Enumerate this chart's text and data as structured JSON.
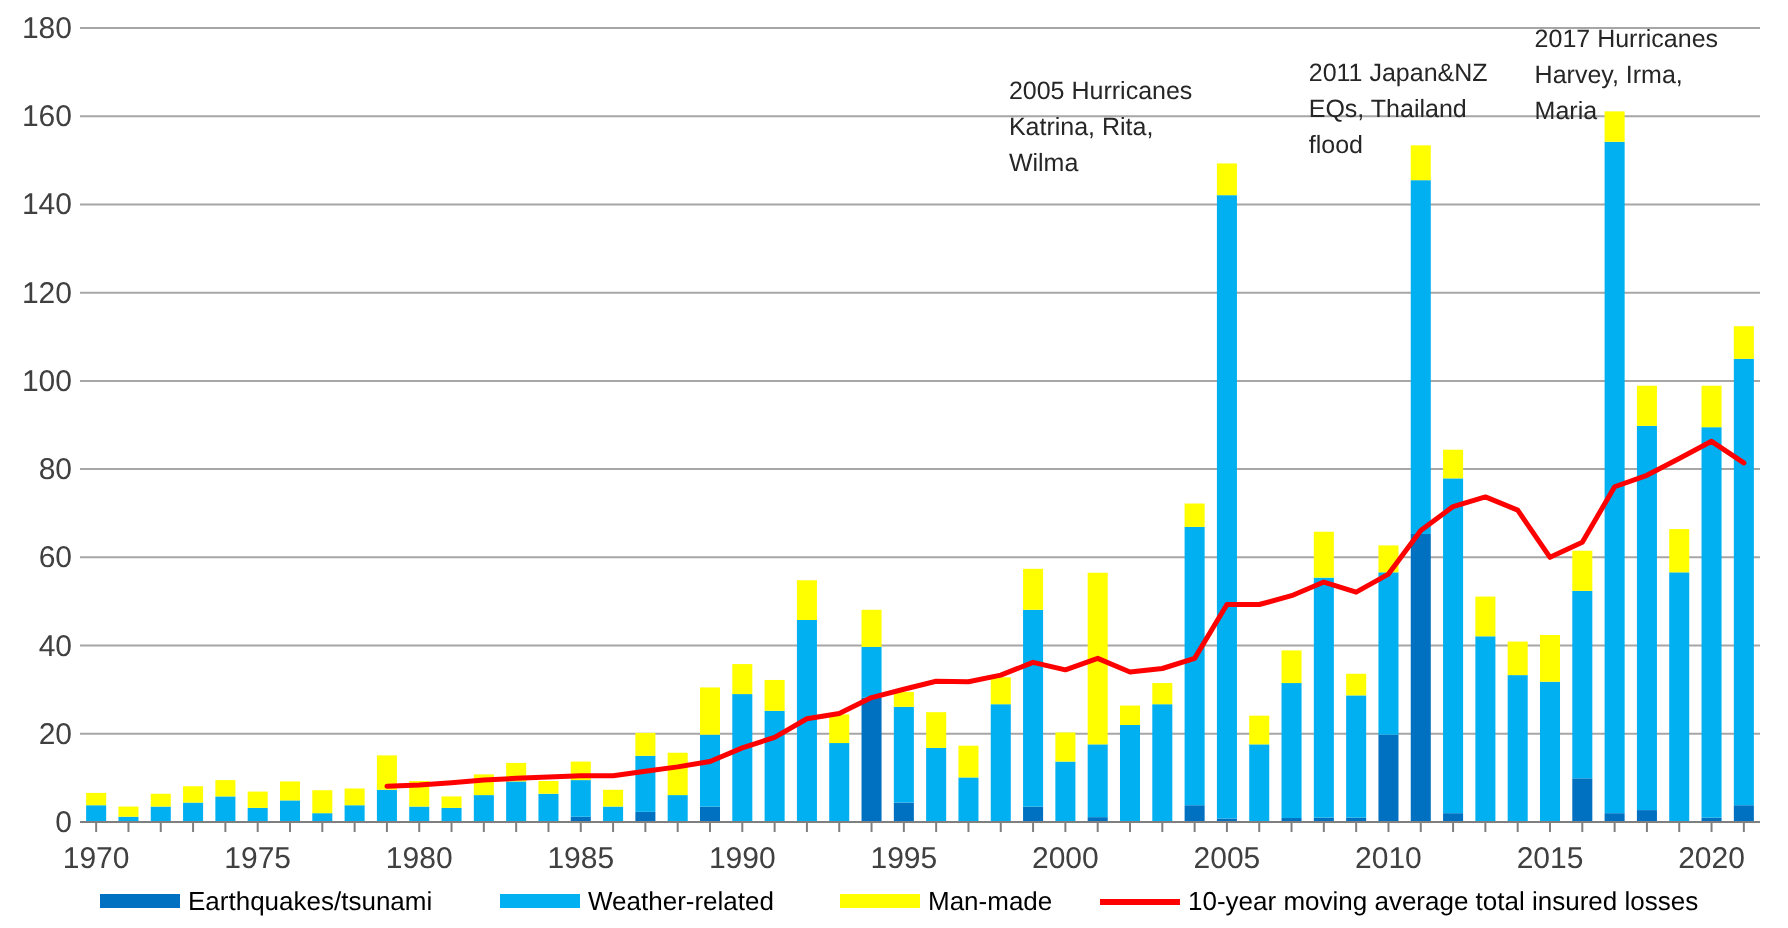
{
  "chart_data": {
    "type": "bar",
    "stacked": true,
    "x": [
      1970,
      1971,
      1972,
      1973,
      1974,
      1975,
      1976,
      1977,
      1978,
      1979,
      1980,
      1981,
      1982,
      1983,
      1984,
      1985,
      1986,
      1987,
      1988,
      1989,
      1990,
      1991,
      1992,
      1993,
      1994,
      1995,
      1996,
      1997,
      1998,
      1999,
      2000,
      2001,
      2002,
      2003,
      2004,
      2005,
      2006,
      2007,
      2008,
      2009,
      2010,
      2011,
      2012,
      2013,
      2014,
      2015,
      2016,
      2017,
      2018,
      2019,
      2020,
      2021
    ],
    "series": [
      {
        "name": "Earthquakes/tsunami",
        "color": "#0070c0",
        "values": [
          0,
          0,
          0,
          0,
          0,
          0,
          0,
          0,
          0,
          0,
          0,
          0,
          0,
          0,
          0,
          1.2,
          0,
          2.3,
          0,
          3.5,
          0,
          0,
          0,
          0,
          28.2,
          4.4,
          0,
          0,
          0,
          3.5,
          0,
          1.1,
          0,
          0,
          3.8,
          0.8,
          0,
          0.9,
          1,
          1,
          19.8,
          65.3,
          2,
          0,
          0,
          0,
          9.9,
          2,
          2.7,
          0,
          1,
          3.8
        ]
      },
      {
        "name": "Weather-related",
        "color": "#00b0f0",
        "values": [
          3.8,
          1.2,
          3.5,
          4.4,
          5.8,
          3.2,
          4.9,
          2,
          3.8,
          7.3,
          3.5,
          3.2,
          6.1,
          9.2,
          6.4,
          8.3,
          3.5,
          12.7,
          6.1,
          16.3,
          29,
          25.2,
          45.8,
          17.9,
          11.5,
          21.7,
          16.8,
          10.1,
          26.7,
          44.6,
          13.7,
          16.5,
          22,
          26.7,
          63.1,
          141.3,
          17.6,
          30.6,
          54.4,
          27.7,
          36.8,
          80.2,
          75.9,
          42.1,
          33.3,
          31.8,
          42.5,
          152.2,
          87.1,
          56.6,
          88.5,
          101.2
        ]
      },
      {
        "name": "Man-made",
        "color": "#ffff00",
        "values": [
          2.8,
          2.3,
          2.9,
          3.7,
          3.7,
          3.7,
          4.3,
          5.2,
          3.8,
          7.8,
          5.8,
          2.6,
          4.7,
          4.2,
          2.9,
          4.2,
          3.8,
          5.2,
          9.6,
          10.7,
          6.8,
          7,
          9,
          6.5,
          8.4,
          3.4,
          8.1,
          7.2,
          6.1,
          9.3,
          6.6,
          38.9,
          4.4,
          4.8,
          5.3,
          7.2,
          6.5,
          7.4,
          10.4,
          4.9,
          6.1,
          7.9,
          6.5,
          9,
          7.6,
          10.6,
          9.1,
          6.9,
          9.1,
          9.8,
          9.4,
          7.4
        ]
      },
      {
        "name": "10-year moving average total insured losses",
        "type": "line",
        "color": "#ff0000",
        "values": [
          null,
          null,
          null,
          null,
          null,
          null,
          null,
          null,
          null,
          8.1,
          8.4,
          8.9,
          9.5,
          9.9,
          10.2,
          10.5,
          10.5,
          11.5,
          12.5,
          13.7,
          16.8,
          19.2,
          23.4,
          24.6,
          28.2,
          30.1,
          31.9,
          31.8,
          33.3,
          36.2,
          34.5,
          37.1,
          34,
          34.8,
          37.1,
          49.3,
          49.3,
          51.3,
          54.4,
          52.1,
          56.2,
          66.1,
          71.5,
          73.7,
          70.7,
          60,
          63.4,
          76,
          78.6,
          82.4,
          86.3,
          81.4
        ]
      }
    ],
    "xlim": [
      1969.5,
      2021.5
    ],
    "xticks": [
      1970,
      {
        "value": 1971,
        "label": null
      },
      {
        "value": 1972,
        "label": null
      },
      {
        "value": 1973,
        "label": null
      },
      {
        "value": 1974,
        "label": null
      },
      1975,
      {
        "value": 1976,
        "label": null
      },
      {
        "value": 1977,
        "label": null
      },
      {
        "value": 1978,
        "label": null
      },
      {
        "value": 1979,
        "label": null
      },
      1980,
      {
        "value": 1981,
        "label": null
      },
      {
        "value": 1982,
        "label": null
      },
      {
        "value": 1983,
        "label": null
      },
      {
        "value": 1984,
        "label": null
      },
      1985,
      {
        "value": 1986,
        "label": null
      },
      {
        "value": 1987,
        "label": null
      },
      {
        "value": 1988,
        "label": null
      },
      {
        "value": 1989,
        "label": null
      },
      1990,
      {
        "value": 1991,
        "label": null
      },
      {
        "value": 1992,
        "label": null
      },
      {
        "value": 1993,
        "label": null
      },
      {
        "value": 1994,
        "label": null
      },
      1995,
      {
        "value": 1996,
        "label": null
      },
      {
        "value": 1997,
        "label": null
      },
      {
        "value": 1998,
        "label": null
      },
      {
        "value": 1999,
        "label": null
      },
      2000,
      {
        "value": 2001,
        "label": null
      },
      {
        "value": 2002,
        "label": null
      },
      {
        "value": 2003,
        "label": null
      },
      {
        "value": 2004,
        "label": null
      },
      2005,
      {
        "value": 2006,
        "label": null
      },
      {
        "value": 2007,
        "label": null
      },
      {
        "value": 2008,
        "label": null
      },
      {
        "value": 2009,
        "label": null
      },
      2010,
      {
        "value": 2011,
        "label": null
      },
      {
        "value": 2012,
        "label": null
      },
      {
        "value": 2013,
        "label": null
      },
      {
        "value": 2014,
        "label": null
      },
      2015,
      {
        "value": 2016,
        "label": null
      },
      {
        "value": 2017,
        "label": null
      },
      {
        "value": 2018,
        "label": null
      },
      {
        "value": 2019,
        "label": null
      },
      2020,
      {
        "value": 2021,
        "label": null
      }
    ],
    "ylim": [
      0,
      180
    ],
    "yticks": [
      0,
      20,
      40,
      60,
      80,
      100,
      120,
      140,
      160,
      180
    ],
    "grid": "y",
    "legend": "bottom",
    "annotations": [
      {
        "text": "2005 Hurricanes\nKatrina, Rita,\nWilma",
        "x": 2005,
        "y": 149.3
      },
      {
        "text": "2011 Japan&NZ\nEQs, Thailand\nflood",
        "x": 2011,
        "y": 153.4
      },
      {
        "text": "2017 Hurricanes\nHarvey, Irma,\nMaria",
        "x": 2017,
        "y": 161.1
      }
    ]
  }
}
